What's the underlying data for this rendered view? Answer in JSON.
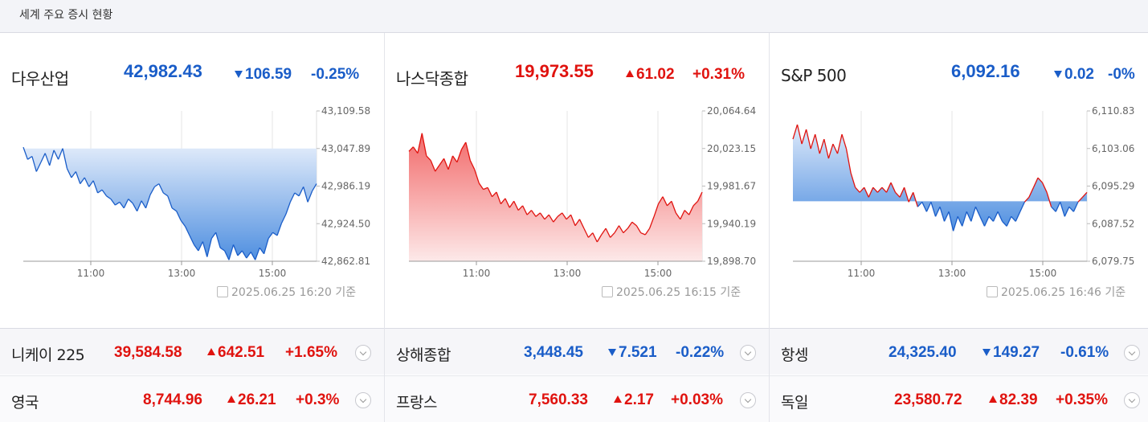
{
  "header": {
    "title": "세계 주요 증시 현황"
  },
  "colors": {
    "up": "#e0130f",
    "down": "#1a5dc8"
  },
  "main_indices": [
    {
      "name": "다우산업",
      "value": "42,982.43",
      "change": "106.59",
      "pct": "-0.25%",
      "dir": "down",
      "timestamp": "2025.06.25 16:20 기준",
      "chart_data": {
        "type": "area",
        "yticks": [
          "43,109.58",
          "43,047.89",
          "42,986.19",
          "42,924.50",
          "42,862.81"
        ],
        "ylim": [
          42862.81,
          43109.58
        ],
        "xticks": [
          "11:00",
          "13:00",
          "15:00"
        ],
        "baseline": 43047.89,
        "series": [
          43050,
          43030,
          43035,
          43010,
          43025,
          43040,
          43020,
          43045,
          43030,
          43048,
          43015,
          43000,
          43010,
          42990,
          43000,
          42985,
          42995,
          42975,
          42980,
          42970,
          42965,
          42955,
          42960,
          42950,
          42965,
          42958,
          42945,
          42962,
          42950,
          42972,
          42985,
          42990,
          42975,
          42970,
          42950,
          42945,
          42930,
          42920,
          42905,
          42890,
          42880,
          42895,
          42870,
          42900,
          42910,
          42885,
          42880,
          42865,
          42890,
          42872,
          42880,
          42868,
          42878,
          42865,
          42885,
          42875,
          42900,
          42910,
          42905,
          42925,
          42940,
          42960,
          42975,
          42970,
          42985,
          42960,
          42978,
          42990
        ]
      }
    },
    {
      "name": "나스닥종합",
      "value": "19,973.55",
      "change": "61.02",
      "pct": "+0.31%",
      "dir": "up",
      "timestamp": "2025.06.25 16:15 기준",
      "chart_data": {
        "type": "area",
        "yticks": [
          "20,064.64",
          "20,023.15",
          "19,981.67",
          "19,940.19",
          "19,898.70"
        ],
        "ylim": [
          19898.7,
          20064.64
        ],
        "xticks": [
          "11:00",
          "13:00",
          "15:00"
        ],
        "baseline": 19898.7,
        "series": [
          20020,
          20025,
          20018,
          20040,
          20015,
          20010,
          19998,
          20005,
          20012,
          20000,
          20015,
          20008,
          20022,
          20030,
          20010,
          20000,
          19985,
          19978,
          19980,
          19970,
          19975,
          19962,
          19968,
          19958,
          19965,
          19955,
          19960,
          19950,
          19955,
          19948,
          19952,
          19945,
          19950,
          19942,
          19948,
          19952,
          19945,
          19950,
          19938,
          19945,
          19935,
          19925,
          19930,
          19920,
          19928,
          19935,
          19925,
          19930,
          19938,
          19930,
          19935,
          19942,
          19938,
          19930,
          19928,
          19935,
          19948,
          19962,
          19970,
          19960,
          19965,
          19952,
          19945,
          19955,
          19950,
          19960,
          19965,
          19975
        ]
      }
    },
    {
      "name": "S&P 500",
      "value": "6,092.16",
      "change": "0.02",
      "pct": "-0%",
      "dir": "down",
      "timestamp": "2025.06.25 16:46 기준",
      "chart_data": {
        "type": "area",
        "yticks": [
          "6,110.83",
          "6,103.06",
          "6,095.29",
          "6,087.52",
          "6,079.75"
        ],
        "ylim": [
          6079.75,
          6110.83
        ],
        "xticks": [
          "11:00",
          "13:00",
          "15:00"
        ],
        "baseline": 6092.16,
        "series": [
          6105,
          6108,
          6104,
          6107,
          6103,
          6106,
          6102,
          6105,
          6101,
          6104,
          6102,
          6106,
          6103,
          6098,
          6095,
          6094,
          6095,
          6093,
          6095,
          6094,
          6095,
          6094,
          6096,
          6094,
          6093,
          6095,
          6092,
          6094,
          6091,
          6092,
          6090,
          6092,
          6089,
          6091,
          6088,
          6090,
          6086,
          6089,
          6087,
          6090,
          6088,
          6091,
          6089,
          6087,
          6089,
          6088,
          6090,
          6088,
          6087,
          6089,
          6088,
          6090,
          6092,
          6093,
          6095,
          6097,
          6096,
          6094,
          6091,
          6090,
          6092,
          6089,
          6091,
          6090,
          6092,
          6093,
          6094
        ]
      }
    }
  ],
  "secondary_rows": [
    [
      {
        "name": "니케이 225",
        "value": "39,584.58",
        "change": "642.51",
        "pct": "+1.65%",
        "dir": "up"
      },
      {
        "name": "상해종합",
        "value": "3,448.45",
        "change": "7.521",
        "pct": "-0.22%",
        "dir": "down"
      },
      {
        "name": "항셍",
        "value": "24,325.40",
        "change": "149.27",
        "pct": "-0.61%",
        "dir": "down"
      }
    ],
    [
      {
        "name": "영국",
        "value": "8,744.96",
        "change": "26.21",
        "pct": "+0.3%",
        "dir": "up"
      },
      {
        "name": "프랑스",
        "value": "7,560.33",
        "change": "2.17",
        "pct": "+0.03%",
        "dir": "up"
      },
      {
        "name": "독일",
        "value": "23,580.72",
        "change": "82.39",
        "pct": "+0.35%",
        "dir": "up"
      }
    ]
  ]
}
